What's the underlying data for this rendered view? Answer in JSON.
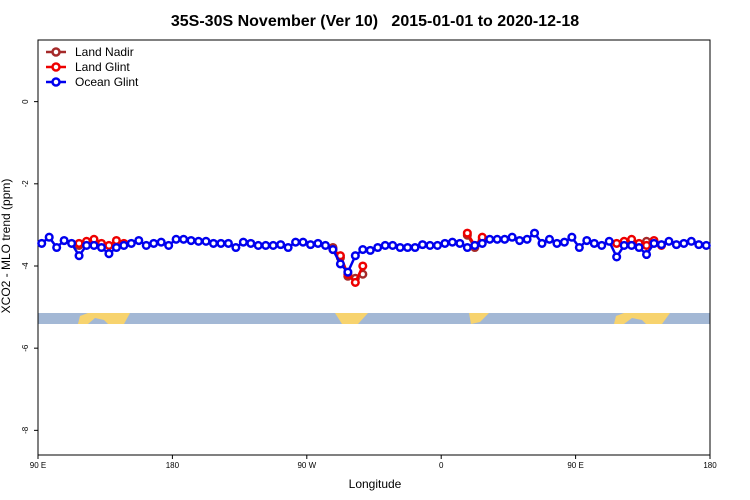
{
  "chart_data": {
    "type": "line",
    "title": "35S-30S November (Ver 10)   2015-01-01 to 2020-12-18",
    "xlabel": "Longitude",
    "ylabel": "XCO2 - MLO trend (ppm)",
    "legend": "upper left",
    "xlim": [
      90,
      540
    ],
    "ylim": [
      -8.6,
      1.5
    ],
    "xticks": [
      {
        "value": 90,
        "label": "90 E"
      },
      180,
      {
        "value": 270,
        "label": "90 W"
      },
      {
        "value": 360,
        "label": "0"
      },
      {
        "value": 450,
        "label": "90 E"
      },
      {
        "value": 540,
        "label": "180"
      }
    ],
    "yticks": [
      0,
      -2,
      -4,
      -6,
      -8
    ],
    "x": [
      92.5,
      97.5,
      102.5,
      107.5,
      112.5,
      117.5,
      122.5,
      127.5,
      132.5,
      137.5,
      142.5,
      147.5,
      152.5,
      157.5,
      162.5,
      167.5,
      172.5,
      177.5,
      182.5,
      187.5,
      192.5,
      197.5,
      202.5,
      207.5,
      212.5,
      217.5,
      222.5,
      227.5,
      232.5,
      237.5,
      242.5,
      247.5,
      252.5,
      257.5,
      262.5,
      267.5,
      272.5,
      277.5,
      282.5,
      287.5,
      292.5,
      297.5,
      302.5,
      307.5,
      312.5,
      317.5,
      322.5,
      327.5,
      332.5,
      337.5,
      342.5,
      347.5,
      352.5,
      357.5,
      362.5,
      367.5,
      372.5,
      377.5,
      382.5,
      387.5,
      392.5,
      397.5,
      402.5,
      407.5,
      412.5,
      417.5,
      422.5,
      427.5,
      432.5,
      437.5,
      442.5,
      447.5,
      452.5,
      457.5,
      462.5,
      467.5,
      472.5,
      477.5,
      482.5,
      487.5,
      492.5,
      497.5,
      502.5,
      507.5,
      512.5,
      517.5,
      522.5,
      527.5,
      532.5,
      537.5
    ],
    "series": [
      {
        "name": "Land Nadir",
        "color": "#a52a2a",
        "values": [
          null,
          null,
          null,
          null,
          null,
          -3.5,
          -3.45,
          -3.4,
          -3.5,
          null,
          null,
          null,
          null,
          null,
          null,
          null,
          null,
          null,
          null,
          null,
          null,
          null,
          null,
          null,
          null,
          null,
          null,
          null,
          null,
          null,
          null,
          null,
          null,
          null,
          null,
          null,
          null,
          null,
          null,
          -3.55,
          -3.8,
          -4.25,
          -4.3,
          -4.2,
          null,
          null,
          null,
          null,
          null,
          null,
          null,
          null,
          null,
          null,
          null,
          null,
          null,
          -3.25,
          -3.55,
          -3.35,
          null,
          null,
          null,
          null,
          null,
          null,
          null,
          null,
          null,
          null,
          null,
          null,
          null,
          null,
          null,
          null,
          null,
          null,
          -3.45,
          -3.4,
          -3.5,
          -3.4,
          null,
          null,
          null,
          null,
          null,
          null,
          null,
          null
        ]
      },
      {
        "name": "Land Glint",
        "color": "#ee0000",
        "values": [
          null,
          null,
          null,
          null,
          null,
          -3.45,
          -3.4,
          -3.35,
          -3.45,
          -3.5,
          -3.38,
          -3.45,
          null,
          null,
          null,
          null,
          null,
          null,
          null,
          null,
          null,
          null,
          null,
          null,
          null,
          null,
          null,
          null,
          null,
          null,
          null,
          null,
          null,
          null,
          null,
          null,
          null,
          null,
          null,
          -3.6,
          -3.75,
          -4.2,
          -4.4,
          -4.0,
          null,
          null,
          null,
          null,
          null,
          null,
          null,
          null,
          null,
          null,
          null,
          null,
          null,
          -3.2,
          -3.5,
          -3.3,
          null,
          null,
          null,
          null,
          null,
          null,
          null,
          null,
          null,
          null,
          null,
          null,
          null,
          null,
          null,
          null,
          null,
          -3.45,
          -3.4,
          -3.35,
          -3.45,
          -3.5,
          -3.38,
          -3.5,
          null,
          null,
          null,
          null,
          null,
          null
        ]
      },
      {
        "name": "Ocean Glint",
        "color": "#0000ee",
        "values": [
          -3.45,
          -3.3,
          -3.55,
          -3.38,
          -3.45,
          -3.75,
          -3.5,
          -3.5,
          -3.55,
          -3.7,
          -3.55,
          -3.5,
          -3.45,
          -3.38,
          -3.5,
          -3.45,
          -3.42,
          -3.5,
          -3.35,
          -3.35,
          -3.38,
          -3.4,
          -3.4,
          -3.45,
          -3.45,
          -3.45,
          -3.55,
          -3.42,
          -3.45,
          -3.5,
          -3.5,
          -3.5,
          -3.48,
          -3.55,
          -3.42,
          -3.42,
          -3.48,
          -3.45,
          -3.5,
          -3.6,
          -3.95,
          -4.15,
          -3.75,
          -3.6,
          -3.62,
          -3.55,
          -3.5,
          -3.5,
          -3.55,
          -3.55,
          -3.55,
          -3.48,
          -3.5,
          -3.5,
          -3.45,
          -3.42,
          -3.45,
          -3.55,
          -3.5,
          -3.45,
          -3.35,
          -3.35,
          -3.35,
          -3.3,
          -3.38,
          -3.35,
          -3.2,
          -3.45,
          -3.35,
          -3.45,
          -3.42,
          -3.3,
          -3.55,
          -3.38,
          -3.45,
          -3.5,
          -3.4,
          -3.78,
          -3.5,
          -3.5,
          -3.55,
          -3.72,
          -3.45,
          -3.48,
          -3.4,
          -3.48,
          -3.45,
          -3.4,
          -3.48,
          -3.5
        ]
      }
    ]
  }
}
